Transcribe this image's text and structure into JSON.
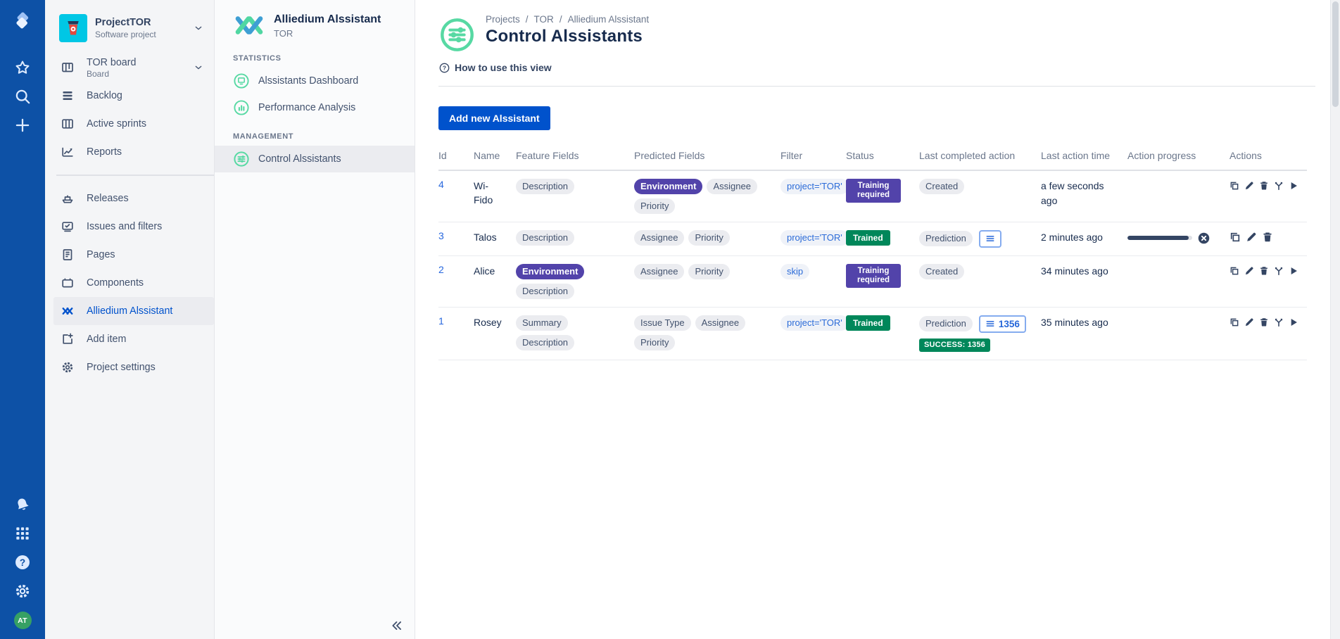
{
  "colors": {
    "navbar_bg": "#0D51A6",
    "button_blue": "#0052CC",
    "link_blue": "#2868DE",
    "status_purple": "#5243AA",
    "status_green": "#00875A",
    "plugin_icon_green": "#57D9A3",
    "progress_bar": "#344563",
    "selected_item_bg": "#EBECF0"
  },
  "global_nav": {
    "top_icons": [
      "jira-logo",
      "star",
      "search",
      "plus"
    ],
    "bottom_icons": [
      "bell",
      "app-grid",
      "help",
      "gear"
    ],
    "avatar_initials": "AT"
  },
  "project_sidebar": {
    "project_name": "ProjectTOR",
    "project_type": "Software project",
    "items_top": [
      {
        "icon": "board",
        "label": "TOR board",
        "sublabel": "Board",
        "chevron": true
      },
      {
        "icon": "backlog",
        "label": "Backlog"
      },
      {
        "icon": "sprints",
        "label": "Active sprints"
      },
      {
        "icon": "reports",
        "label": "Reports"
      }
    ],
    "items_bottom": [
      {
        "icon": "releases",
        "label": "Releases"
      },
      {
        "icon": "issues-filters",
        "label": "Issues and filters"
      },
      {
        "icon": "pages",
        "label": "Pages"
      },
      {
        "icon": "components",
        "label": "Components"
      },
      {
        "icon": "alliedium",
        "label": "Alliedium Alssistant",
        "selected": true
      },
      {
        "icon": "add-item",
        "label": "Add item"
      },
      {
        "icon": "settings",
        "label": "Project settings"
      }
    ]
  },
  "plugin_sidebar": {
    "title": "Alliedium Alssistant",
    "subtitle": "TOR",
    "sections": [
      {
        "heading": "STATISTICS",
        "items": [
          {
            "icon": "dashboard",
            "label": "Alssistants Dashboard"
          },
          {
            "icon": "performance",
            "label": "Performance Analysis"
          }
        ]
      },
      {
        "heading": "MANAGEMENT",
        "items": [
          {
            "icon": "control",
            "label": "Control Alssistants",
            "selected": true
          }
        ]
      }
    ]
  },
  "main": {
    "breadcrumbs": [
      "Projects",
      "TOR",
      "Alliedium Alssistant"
    ],
    "title": "Control Alssistants",
    "help_link": "How to use this view",
    "add_button": "Add new Alssistant",
    "table": {
      "columns": [
        "Id",
        "Name",
        "Feature Fields",
        "Predicted Fields",
        "Filter",
        "Status",
        "Last completed action",
        "Last action time",
        "Action progress",
        "Actions"
      ],
      "rows": [
        {
          "id": "4",
          "name": "Wi-Fido",
          "feature_fields": [
            {
              "label": "Description",
              "variant": "gray"
            }
          ],
          "predicted_fields": [
            {
              "label": "Environment",
              "variant": "purple"
            },
            {
              "label": "Assignee",
              "variant": "gray"
            },
            {
              "label": "Priority",
              "variant": "gray"
            }
          ],
          "filter": "project='TOR'",
          "status": {
            "label": "Training required",
            "variant": "purple"
          },
          "last_completed_action": {
            "pill": "Created"
          },
          "last_action_time": "a few seconds ago",
          "progress": null,
          "actions": [
            "copy",
            "edit",
            "delete",
            "branch",
            "run"
          ]
        },
        {
          "id": "3",
          "name": "Talos",
          "feature_fields": [
            {
              "label": "Description",
              "variant": "gray"
            }
          ],
          "predicted_fields": [
            {
              "label": "Assignee",
              "variant": "gray"
            },
            {
              "label": "Priority",
              "variant": "gray"
            }
          ],
          "filter": "project='TOR'",
          "status": {
            "label": "Trained",
            "variant": "green"
          },
          "last_completed_action": {
            "pill": "Prediction",
            "list_button": true
          },
          "last_action_time": "2 minutes ago",
          "progress": {
            "percent": 95,
            "cancellable": true
          },
          "actions": [
            "copy",
            "edit",
            "delete"
          ]
        },
        {
          "id": "2",
          "name": "Alice",
          "feature_fields": [
            {
              "label": "Environment",
              "variant": "purple"
            },
            {
              "label": "Description",
              "variant": "gray"
            }
          ],
          "predicted_fields": [
            {
              "label": "Assignee",
              "variant": "gray"
            },
            {
              "label": "Priority",
              "variant": "gray"
            }
          ],
          "filter": "skip",
          "status": {
            "label": "Training required",
            "variant": "purple"
          },
          "last_completed_action": {
            "pill": "Created"
          },
          "last_action_time": "34 minutes ago",
          "progress": null,
          "actions": [
            "copy",
            "edit",
            "delete",
            "branch",
            "run"
          ]
        },
        {
          "id": "1",
          "name": "Rosey",
          "feature_fields": [
            {
              "label": "Summary",
              "variant": "gray"
            },
            {
              "label": "Description",
              "variant": "gray"
            }
          ],
          "predicted_fields": [
            {
              "label": "Issue Type",
              "variant": "gray"
            },
            {
              "label": "Assignee",
              "variant": "gray"
            },
            {
              "label": "Priority",
              "variant": "gray"
            }
          ],
          "filter": "project='TOR'",
          "status": {
            "label": "Trained",
            "variant": "green"
          },
          "last_completed_action": {
            "pill": "Prediction",
            "list_button": true,
            "list_count": "1356",
            "success_badge": "SUCCESS: 1356"
          },
          "last_action_time": "35 minutes ago",
          "progress": null,
          "actions": [
            "copy",
            "edit",
            "delete",
            "branch",
            "run"
          ]
        }
      ]
    }
  }
}
